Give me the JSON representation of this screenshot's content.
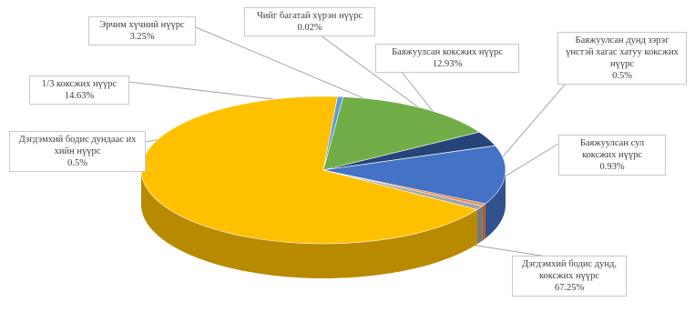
{
  "chart_data": {
    "type": "pie",
    "style": "3d",
    "title": "",
    "slices": [
      {
        "label": "Дэгдэмхий бодис дунд, коксжих нүүрс",
        "value": 67.25,
        "value_text": "67.25%",
        "color": "#FFC000"
      },
      {
        "label": "Дэгдэмхий бодис дундаас их хийн нүүрс",
        "value": 0.5,
        "value_text": "0.5%",
        "color": "#5B9BD5"
      },
      {
        "label": "1/3 коксжих нүүрс",
        "value": 14.63,
        "value_text": "14.63%",
        "color": "#70AD47"
      },
      {
        "label": "Эрчим хүчний нүүрс",
        "value": 3.25,
        "value_text": "3.25%",
        "color": "#264478"
      },
      {
        "label": "Чийг багатай хүрэн нүүрс",
        "value": 0.02,
        "value_text": "0.02%",
        "color": "#9E480E"
      },
      {
        "label": "Баяжуулсан коксжих нүүрс",
        "value": 12.93,
        "value_text": "12.93%",
        "color": "#4472C4"
      },
      {
        "label": "Баяжуулсан дунд зэрэг үнстэй хагас хатуу коксжих нүүрс",
        "value": 0.5,
        "value_text": "0.5%",
        "color": "#ED7D31"
      },
      {
        "label": "Баяжуулсан сул коксжих нүүрс",
        "value": 0.93,
        "value_text": "0.93%",
        "color": "#A5A5A5"
      }
    ]
  }
}
